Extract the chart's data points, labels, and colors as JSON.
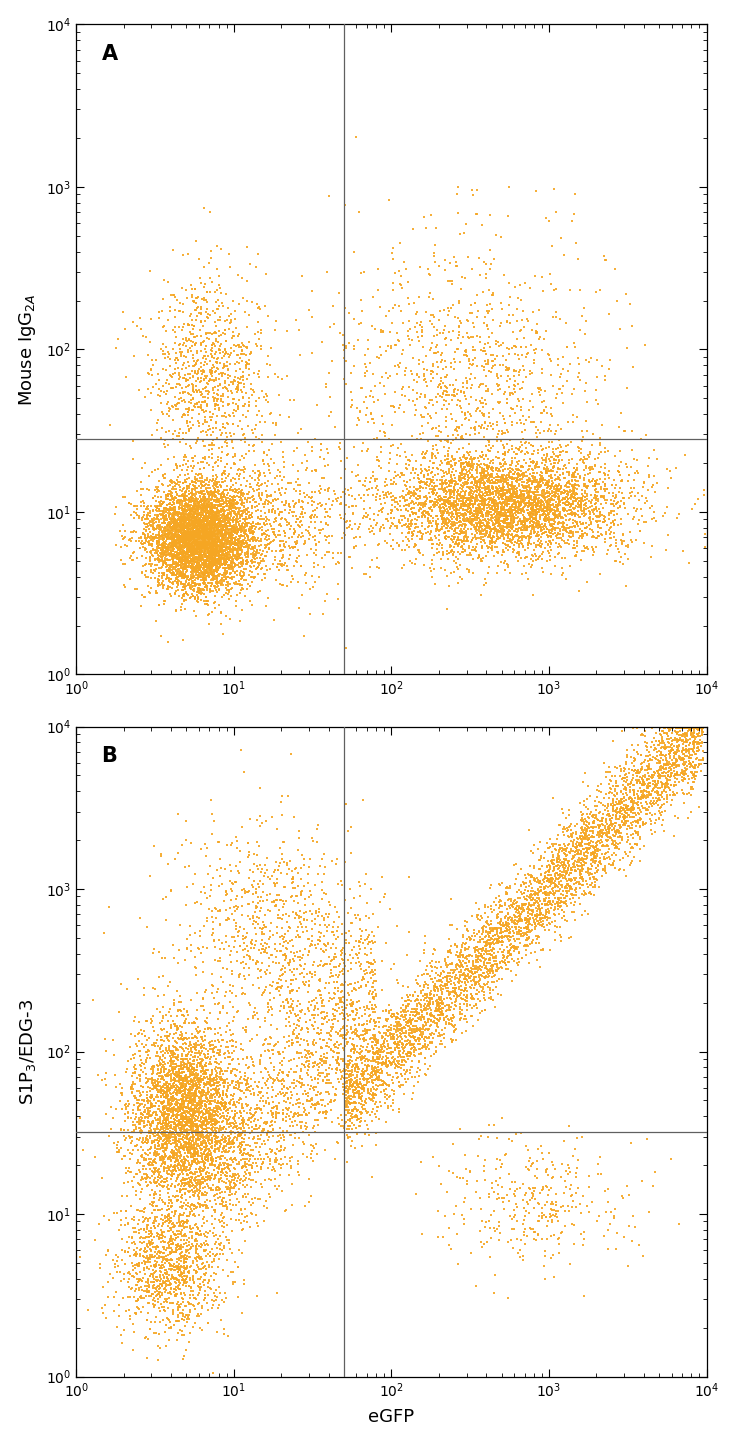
{
  "fig_width": 7.36,
  "fig_height": 14.43,
  "dpi": 100,
  "dot_color": "#F5A623",
  "dot_size": 3.5,
  "dot_alpha": 0.9,
  "background_color": "#ffffff",
  "xlim": [
    1,
    10000
  ],
  "ylim": [
    1,
    10000
  ],
  "xlabel": "eGFP",
  "ylabel_A": "Mouse IgG$_{2A}$",
  "ylabel_B": "S1P$_3$/EDG-3",
  "label_A": "A",
  "label_B": "B",
  "vline_x": 50,
  "hline_y_A": 28,
  "hline_y_B": 32,
  "n_points_A": 12000,
  "n_points_B": 12000
}
